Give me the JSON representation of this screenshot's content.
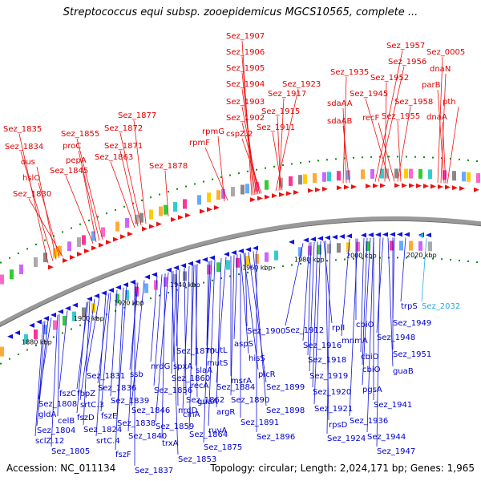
{
  "title": "Streptococcus equi subsp. zooepidemicus MGCS10565, complete ...",
  "footer": {
    "accession": "Accession: NC_011134",
    "summary": "Topology: circular; Length: 2,024,171 bp; Genes: 1,965"
  },
  "colors": {
    "forward": "#ee1111",
    "reverse": "#1111dd",
    "highlight": "#22aadd",
    "backbone": "#999999",
    "tick_dot": "#118811"
  },
  "ticks": [
    "1880 kbp",
    "1900 kbp",
    "1920 kbp",
    "1940 kbp",
    "1960 kbp",
    "1980 kbp",
    "2000 kbp",
    "2020 kbp"
  ],
  "red_labels": [
    "Sez_1907",
    "Sez_1906",
    "Sez_1905",
    "Sez_1904",
    "Sez_1903",
    "Sez_1902",
    "cspZ.2",
    "rpmG",
    "rpmF",
    "Sez_1878",
    "Sez_1877",
    "Sez_1872",
    "Sez_1871",
    "Sez_1863",
    "Sez_1855",
    "proC",
    "pepA",
    "Sez_1845",
    "Sez_1835",
    "Sez_1834",
    "dus",
    "hslO",
    "Sez_1830",
    "Sez_1923",
    "Sez_1917",
    "Sez_1915",
    "Sez_1911",
    "Sez_1935",
    "sdaAA",
    "sdaAB",
    "Sez_1957",
    "Sez_1956",
    "Sez_1952",
    "Sez_1945",
    "recF",
    "Sez_1958",
    "Sez_1955",
    "Sez_0005",
    "dnaN",
    "parB",
    "pth",
    "dnaA"
  ],
  "blue_labels": [
    "Sez_1900",
    "hisS",
    "aspS",
    "plcR",
    "Sez_1899",
    "Sez_1898",
    "Sez_1896",
    "msrA",
    "Sez_1884",
    "Sez_1890",
    "argR",
    "Sez_1891",
    "mutL",
    "mutS",
    "ruvA",
    "Sez_1875",
    "Sez_1870",
    "spxA",
    "Sez_1860",
    "slaA",
    "guaA",
    "cinA",
    "Sez_1864",
    "nrdG",
    "recA",
    "Sez_1856",
    "Sez_1862",
    "nrdD",
    "Sez_1859",
    "trxA",
    "Sez_1853",
    "ssb",
    "Sez_1846",
    "Sez_1838",
    "Sez_1840",
    "Sez_1837",
    "Sez_1831",
    "Sez_1836",
    "Sez_1839",
    "fszE",
    "srtC.4",
    "fszF",
    "fbpZ",
    "srtC.3",
    "fszD",
    "Sez_1824",
    "fszC",
    "Sez_1808",
    "celB",
    "gldA",
    "Sez_1804",
    "sclZ.12",
    "Sez_1805",
    "Sez_1912",
    "Sez_1916",
    "rplI",
    "Sez_1918",
    "Sez_1919",
    "Sez_1920",
    "Sez_1921",
    "rpsD",
    "Sez_1924",
    "cbiO",
    "mnmA",
    "cbiO",
    "cbiO",
    "pgsA",
    "Sez_1941",
    "Sez_1936",
    "Sez_1944",
    "Sez_1947",
    "Sez_1949",
    "Sez_1948",
    "Sez_1951",
    "guaB",
    "trpS"
  ],
  "cyan_labels": [
    "Sez_2032"
  ]
}
